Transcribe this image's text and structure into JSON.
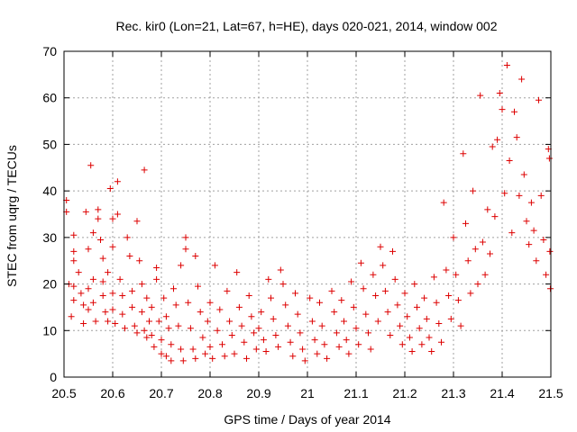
{
  "chart_data": {
    "type": "scatter",
    "title": "Rec. kir0 (Lon=21, Lat=67, h=HE), days 020-021, 2014, window 002",
    "xlabel": "GPS time / Days of year 2014",
    "ylabel": "STEC from uqrg / TECUs",
    "xlim": [
      20.5,
      21.5
    ],
    "ylim": [
      0,
      70
    ],
    "xticks": [
      "20.5",
      "20.6",
      "20.7",
      "20.8",
      "20.9",
      "21",
      "21.1",
      "21.2",
      "21.3",
      "21.4",
      "21.5"
    ],
    "yticks": [
      "0",
      "10",
      "20",
      "30",
      "40",
      "50",
      "60",
      "70"
    ],
    "grid": true,
    "marker": "+",
    "color": "#dd0000",
    "points": [
      [
        20.505,
        38.0
      ],
      [
        20.505,
        35.5
      ],
      [
        20.51,
        20.0
      ],
      [
        20.52,
        30.5
      ],
      [
        20.52,
        27.0
      ],
      [
        20.52,
        25.0
      ],
      [
        20.52,
        19.5
      ],
      [
        20.52,
        16.5
      ],
      [
        20.515,
        13.0
      ],
      [
        20.53,
        22.5
      ],
      [
        20.535,
        18.0
      ],
      [
        20.54,
        15.5
      ],
      [
        20.54,
        11.5
      ],
      [
        20.545,
        35.5
      ],
      [
        20.55,
        27.5
      ],
      [
        20.55,
        19.0
      ],
      [
        20.55,
        14.5
      ],
      [
        20.555,
        45.5
      ],
      [
        20.56,
        31.0
      ],
      [
        20.56,
        21.0
      ],
      [
        20.56,
        16.0
      ],
      [
        20.565,
        12.0
      ],
      [
        20.57,
        34.0
      ],
      [
        20.57,
        36.0
      ],
      [
        20.575,
        29.5
      ],
      [
        20.58,
        25.5
      ],
      [
        20.58,
        20.5
      ],
      [
        20.58,
        17.5
      ],
      [
        20.585,
        14.0
      ],
      [
        20.59,
        12.0
      ],
      [
        20.59,
        22.5
      ],
      [
        20.595,
        40.5
      ],
      [
        20.6,
        34.0
      ],
      [
        20.6,
        28.0
      ],
      [
        20.6,
        18.0
      ],
      [
        20.6,
        14.5
      ],
      [
        20.605,
        11.5
      ],
      [
        20.61,
        42.0
      ],
      [
        20.61,
        35.0
      ],
      [
        20.615,
        21.0
      ],
      [
        20.62,
        17.5
      ],
      [
        20.62,
        13.5
      ],
      [
        20.625,
        10.5
      ],
      [
        20.63,
        30.0
      ],
      [
        20.635,
        26.0
      ],
      [
        20.64,
        18.5
      ],
      [
        20.64,
        15.0
      ],
      [
        20.645,
        11.0
      ],
      [
        20.65,
        9.5
      ],
      [
        20.65,
        33.5
      ],
      [
        20.655,
        25.0
      ],
      [
        20.66,
        20.0
      ],
      [
        20.66,
        14.0
      ],
      [
        20.665,
        44.5
      ],
      [
        20.665,
        10.0
      ],
      [
        20.67,
        17.0
      ],
      [
        20.67,
        8.5
      ],
      [
        20.675,
        12.0
      ],
      [
        20.68,
        15.0
      ],
      [
        20.68,
        9.0
      ],
      [
        20.685,
        6.5
      ],
      [
        20.69,
        23.5
      ],
      [
        20.69,
        21.0
      ],
      [
        20.695,
        12.0
      ],
      [
        20.7,
        8.0
      ],
      [
        20.7,
        5.0
      ],
      [
        20.705,
        17.0
      ],
      [
        20.71,
        13.0
      ],
      [
        20.71,
        4.5
      ],
      [
        20.715,
        10.5
      ],
      [
        20.72,
        7.0
      ],
      [
        20.72,
        3.5
      ],
      [
        20.725,
        19.0
      ],
      [
        20.73,
        15.5
      ],
      [
        20.735,
        11.0
      ],
      [
        20.74,
        24.0
      ],
      [
        20.74,
        6.0
      ],
      [
        20.745,
        3.5
      ],
      [
        20.75,
        30.0
      ],
      [
        20.75,
        27.5
      ],
      [
        20.755,
        16.0
      ],
      [
        20.76,
        10.5
      ],
      [
        20.765,
        6.0
      ],
      [
        20.77,
        4.0
      ],
      [
        20.77,
        26.0
      ],
      [
        20.775,
        19.5
      ],
      [
        20.78,
        14.0
      ],
      [
        20.785,
        8.5
      ],
      [
        20.79,
        5.0
      ],
      [
        20.795,
        12.0
      ],
      [
        20.8,
        16.0
      ],
      [
        20.8,
        6.5
      ],
      [
        20.805,
        4.0
      ],
      [
        20.81,
        24.0
      ],
      [
        20.815,
        10.0
      ],
      [
        20.82,
        14.5
      ],
      [
        20.825,
        7.0
      ],
      [
        20.83,
        4.5
      ],
      [
        20.835,
        18.5
      ],
      [
        20.84,
        12.0
      ],
      [
        20.845,
        9.0
      ],
      [
        20.85,
        5.0
      ],
      [
        20.855,
        22.5
      ],
      [
        20.86,
        15.0
      ],
      [
        20.865,
        11.0
      ],
      [
        20.87,
        7.5
      ],
      [
        20.875,
        4.0
      ],
      [
        20.88,
        17.5
      ],
      [
        20.885,
        13.0
      ],
      [
        20.89,
        9.5
      ],
      [
        20.895,
        6.0
      ],
      [
        20.9,
        10.5
      ],
      [
        20.905,
        14.0
      ],
      [
        20.91,
        8.0
      ],
      [
        20.915,
        5.5
      ],
      [
        20.92,
        21.0
      ],
      [
        20.925,
        17.0
      ],
      [
        20.93,
        12.5
      ],
      [
        20.935,
        9.0
      ],
      [
        20.94,
        6.5
      ],
      [
        20.945,
        23.0
      ],
      [
        20.95,
        20.0
      ],
      [
        20.955,
        15.5
      ],
      [
        20.96,
        11.0
      ],
      [
        20.965,
        7.5
      ],
      [
        20.97,
        4.5
      ],
      [
        20.975,
        18.0
      ],
      [
        20.98,
        13.5
      ],
      [
        20.985,
        9.5
      ],
      [
        20.99,
        6.0
      ],
      [
        20.995,
        3.5
      ],
      [
        21.005,
        17.0
      ],
      [
        21.01,
        12.0
      ],
      [
        21.015,
        8.0
      ],
      [
        21.02,
        5.0
      ],
      [
        21.025,
        16.0
      ],
      [
        21.03,
        11.0
      ],
      [
        21.035,
        7.0
      ],
      [
        21.04,
        4.0
      ],
      [
        21.05,
        18.5
      ],
      [
        21.055,
        14.0
      ],
      [
        21.06,
        9.5
      ],
      [
        21.065,
        6.5
      ],
      [
        21.07,
        16.5
      ],
      [
        21.075,
        12.0
      ],
      [
        21.08,
        8.0
      ],
      [
        21.085,
        5.0
      ],
      [
        21.09,
        20.5
      ],
      [
        21.095,
        15.0
      ],
      [
        21.1,
        10.5
      ],
      [
        21.105,
        7.0
      ],
      [
        21.11,
        24.5
      ],
      [
        21.115,
        19.0
      ],
      [
        21.12,
        13.5
      ],
      [
        21.125,
        9.5
      ],
      [
        21.13,
        6.0
      ],
      [
        21.135,
        22.0
      ],
      [
        21.14,
        17.5
      ],
      [
        21.145,
        12.0
      ],
      [
        21.15,
        28.0
      ],
      [
        21.155,
        24.0
      ],
      [
        21.16,
        18.5
      ],
      [
        21.165,
        14.0
      ],
      [
        21.17,
        9.0
      ],
      [
        21.175,
        27.0
      ],
      [
        21.18,
        21.0
      ],
      [
        21.185,
        15.5
      ],
      [
        21.19,
        11.0
      ],
      [
        21.195,
        7.0
      ],
      [
        21.2,
        18.0
      ],
      [
        21.205,
        13.0
      ],
      [
        21.21,
        8.5
      ],
      [
        21.215,
        5.5
      ],
      [
        21.22,
        20.0
      ],
      [
        21.225,
        15.0
      ],
      [
        21.23,
        10.5
      ],
      [
        21.235,
        7.0
      ],
      [
        21.24,
        17.0
      ],
      [
        21.245,
        12.5
      ],
      [
        21.25,
        8.5
      ],
      [
        21.255,
        5.5
      ],
      [
        21.26,
        21.5
      ],
      [
        21.265,
        16.0
      ],
      [
        21.27,
        11.5
      ],
      [
        21.275,
        7.5
      ],
      [
        21.28,
        37.5
      ],
      [
        21.285,
        23.0
      ],
      [
        21.29,
        17.5
      ],
      [
        21.295,
        12.5
      ],
      [
        21.3,
        30.0
      ],
      [
        21.305,
        22.0
      ],
      [
        21.31,
        16.5
      ],
      [
        21.315,
        11.0
      ],
      [
        21.32,
        48.0
      ],
      [
        21.325,
        33.0
      ],
      [
        21.33,
        25.0
      ],
      [
        21.335,
        18.0
      ],
      [
        21.34,
        40.0
      ],
      [
        21.345,
        27.5
      ],
      [
        21.35,
        20.0
      ],
      [
        21.355,
        60.5
      ],
      [
        21.36,
        29.0
      ],
      [
        21.365,
        22.0
      ],
      [
        21.37,
        36.0
      ],
      [
        21.375,
        26.5
      ],
      [
        21.38,
        49.5
      ],
      [
        21.385,
        34.5
      ],
      [
        21.39,
        51.0
      ],
      [
        21.395,
        61.0
      ],
      [
        21.4,
        57.5
      ],
      [
        21.405,
        39.5
      ],
      [
        21.41,
        67.0
      ],
      [
        21.415,
        46.5
      ],
      [
        21.42,
        31.0
      ],
      [
        21.425,
        57.0
      ],
      [
        21.43,
        51.5
      ],
      [
        21.435,
        39.0
      ],
      [
        21.44,
        64.0
      ],
      [
        21.445,
        43.5
      ],
      [
        21.45,
        33.5
      ],
      [
        21.455,
        28.5
      ],
      [
        21.46,
        37.5
      ],
      [
        21.465,
        31.5
      ],
      [
        21.47,
        25.0
      ],
      [
        21.475,
        59.5
      ],
      [
        21.48,
        39.0
      ],
      [
        21.485,
        29.5
      ],
      [
        21.49,
        22.0
      ],
      [
        21.495,
        49.0
      ],
      [
        21.497,
        47.0
      ],
      [
        21.498,
        27.0
      ],
      [
        21.499,
        19.0
      ]
    ]
  }
}
